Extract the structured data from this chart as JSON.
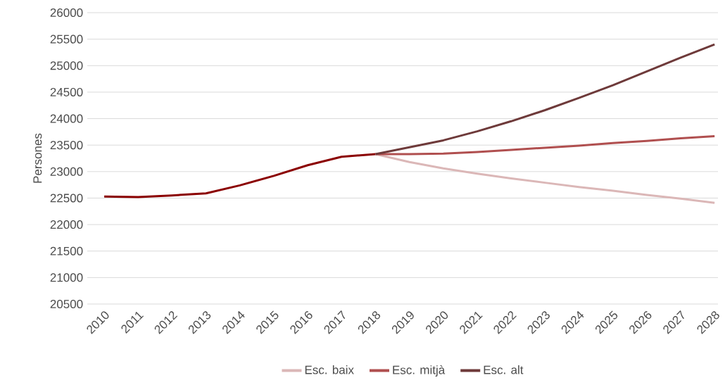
{
  "chart_data": {
    "type": "line",
    "ylabel": "Persones",
    "categories": [
      "2010",
      "2011",
      "2012",
      "2013",
      "2014",
      "2015",
      "2016",
      "2017",
      "2018",
      "2019",
      "2020",
      "2021",
      "2022",
      "2023",
      "2024",
      "2025",
      "2026",
      "2027",
      "2028"
    ],
    "ylim": [
      20500,
      26000
    ],
    "yticks": [
      20500,
      21000,
      21500,
      22000,
      22500,
      23000,
      23500,
      24000,
      24500,
      25000,
      25500,
      26000
    ],
    "grid": "y",
    "legend": "bottom",
    "series": [
      {
        "color": "#8b0000",
        "values": [
          22530,
          22520,
          22550,
          22590,
          22740,
          22920,
          23120,
          23280,
          23330,
          null,
          null,
          null,
          null,
          null,
          null,
          null,
          null,
          null,
          null
        ]
      },
      {
        "name": "Esc. baix",
        "color": "#dbb7b7",
        "values": [
          null,
          null,
          null,
          null,
          null,
          null,
          null,
          null,
          23330,
          23180,
          23060,
          22960,
          22870,
          22790,
          22710,
          22640,
          22560,
          22490,
          22410
        ]
      },
      {
        "name": "Esc. mitjà",
        "color": "#b04f4f",
        "values": [
          null,
          null,
          null,
          null,
          null,
          null,
          null,
          null,
          23330,
          23330,
          23340,
          23370,
          23410,
          23450,
          23490,
          23540,
          23580,
          23630,
          23670
        ]
      },
      {
        "name": "Esc. alt",
        "color": "#6e3a3a",
        "values": [
          null,
          null,
          null,
          null,
          null,
          null,
          null,
          null,
          23330,
          23460,
          23590,
          23760,
          23950,
          24160,
          24390,
          24630,
          24890,
          25150,
          25400
        ]
      }
    ]
  }
}
